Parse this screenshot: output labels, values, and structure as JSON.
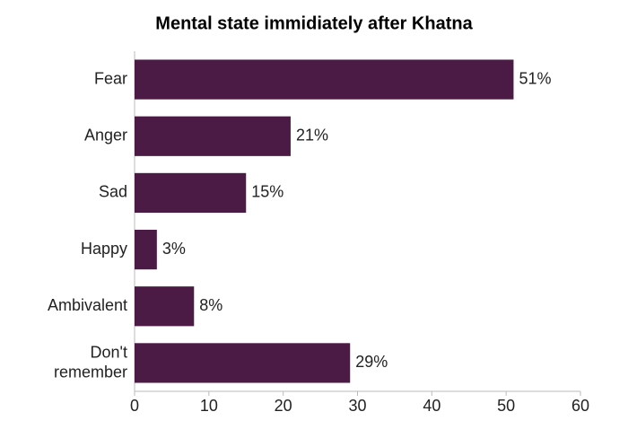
{
  "chart_data": {
    "type": "bar",
    "orientation": "horizontal",
    "title": "Mental state immidiately after Khatna",
    "categories": [
      "Fear",
      "Anger",
      "Sad",
      "Happy",
      "Ambivalent",
      "Don't remember"
    ],
    "values": [
      51,
      21,
      15,
      3,
      8,
      29
    ],
    "value_labels": [
      "51%",
      "21%",
      "15%",
      "3%",
      "8%",
      "29%"
    ],
    "color": "#4b1a45",
    "xlim": [
      0,
      60
    ],
    "xticks": [
      0,
      10,
      20,
      30,
      40,
      50,
      60
    ],
    "grid": false
  }
}
